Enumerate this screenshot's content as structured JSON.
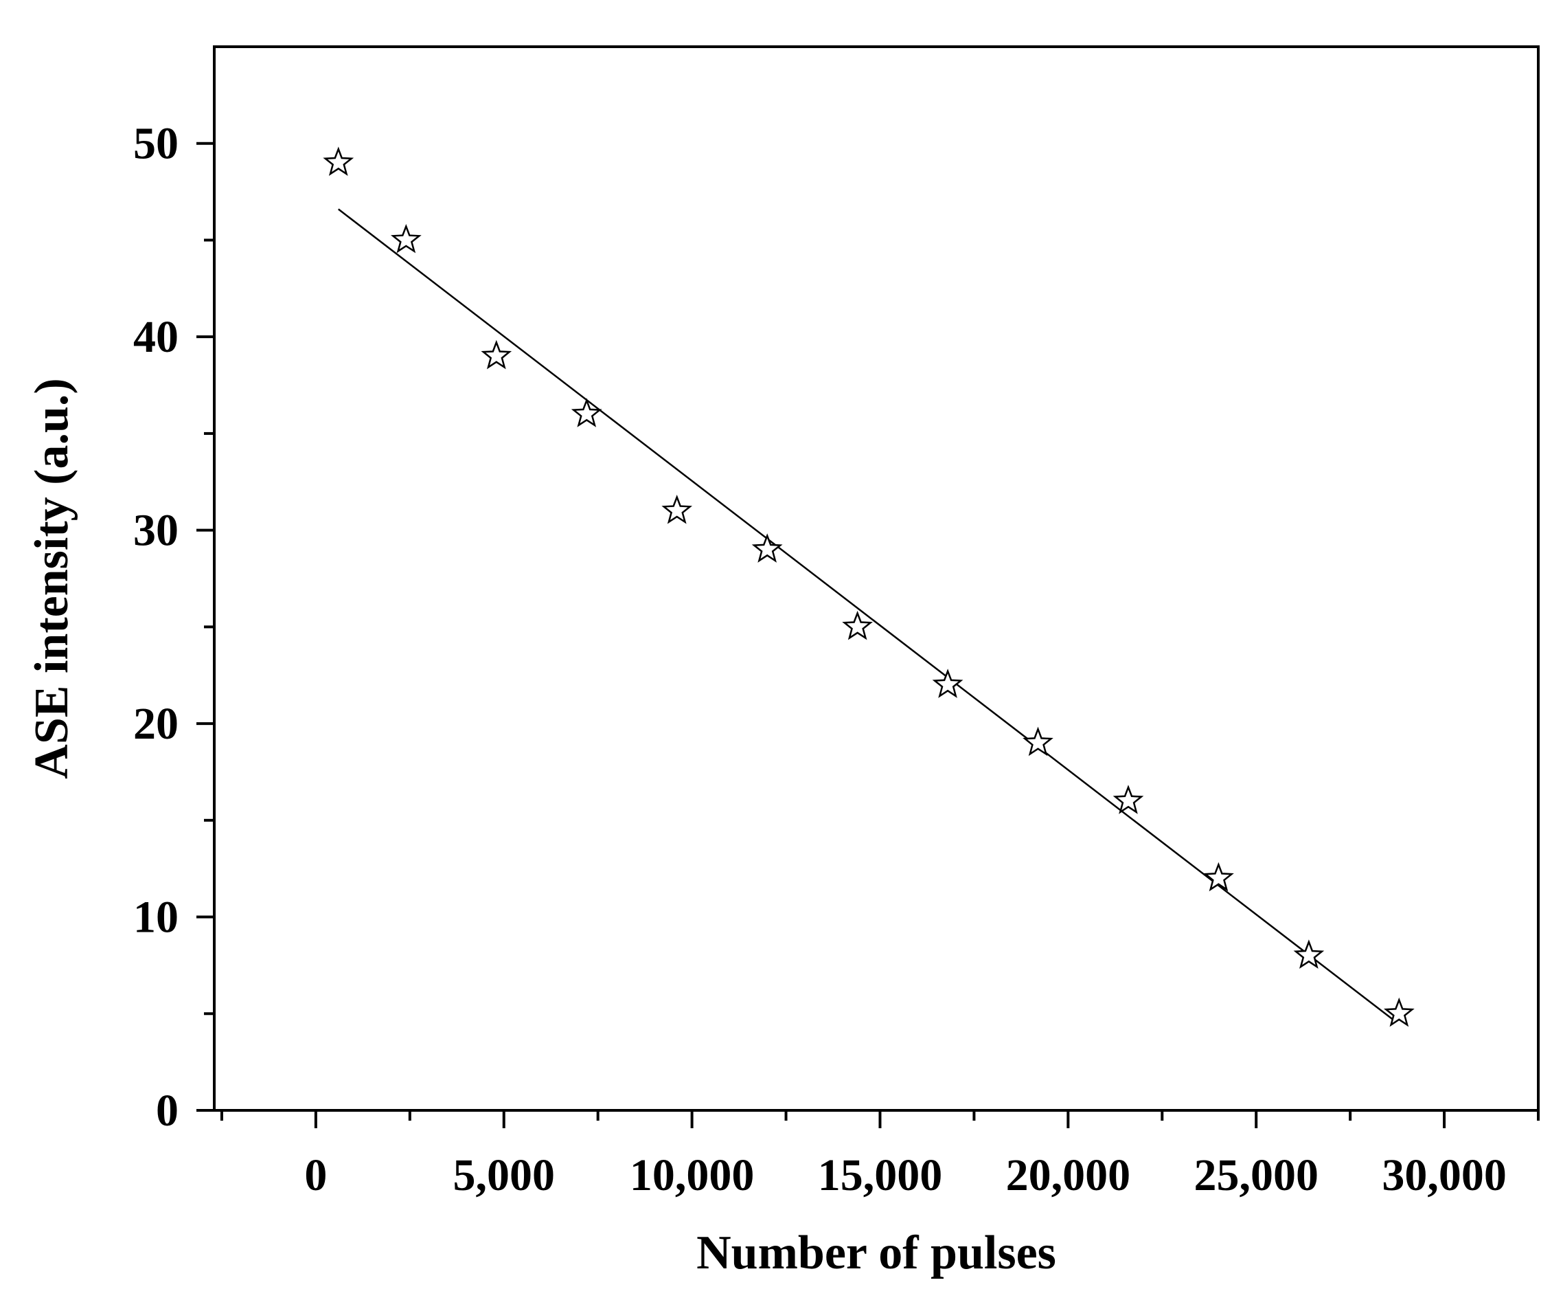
{
  "chart_data": {
    "type": "scatter",
    "title": "",
    "xlabel": "Number of pulses",
    "ylabel": "ASE intensity (a.u.)",
    "xlim": [
      -2700,
      32500
    ],
    "ylim": [
      0,
      55
    ],
    "x_ticks": [
      0,
      5000,
      10000,
      15000,
      20000,
      25000,
      30000
    ],
    "x_tick_labels": [
      "0",
      "5,000",
      "10,000",
      "15,000",
      "20,000",
      "25,000",
      "30,000"
    ],
    "y_ticks": [
      0,
      10,
      20,
      30,
      40,
      50
    ],
    "y_tick_labels": [
      "0",
      "10",
      "20",
      "30",
      "40",
      "50"
    ],
    "grid": false,
    "legend": "none",
    "series": [
      {
        "marker": "open-star",
        "x": [
          600,
          2400,
          4800,
          7200,
          9600,
          12000,
          14400,
          16800,
          19200,
          21600,
          24000,
          26400,
          28800
        ],
        "y": [
          49,
          45,
          39,
          36,
          31,
          29,
          25,
          22,
          19,
          16,
          12,
          8,
          5
        ]
      }
    ],
    "fit_line": {
      "type": "linear",
      "x": [
        600,
        28700
      ],
      "y": [
        46.6,
        4.6
      ]
    }
  }
}
